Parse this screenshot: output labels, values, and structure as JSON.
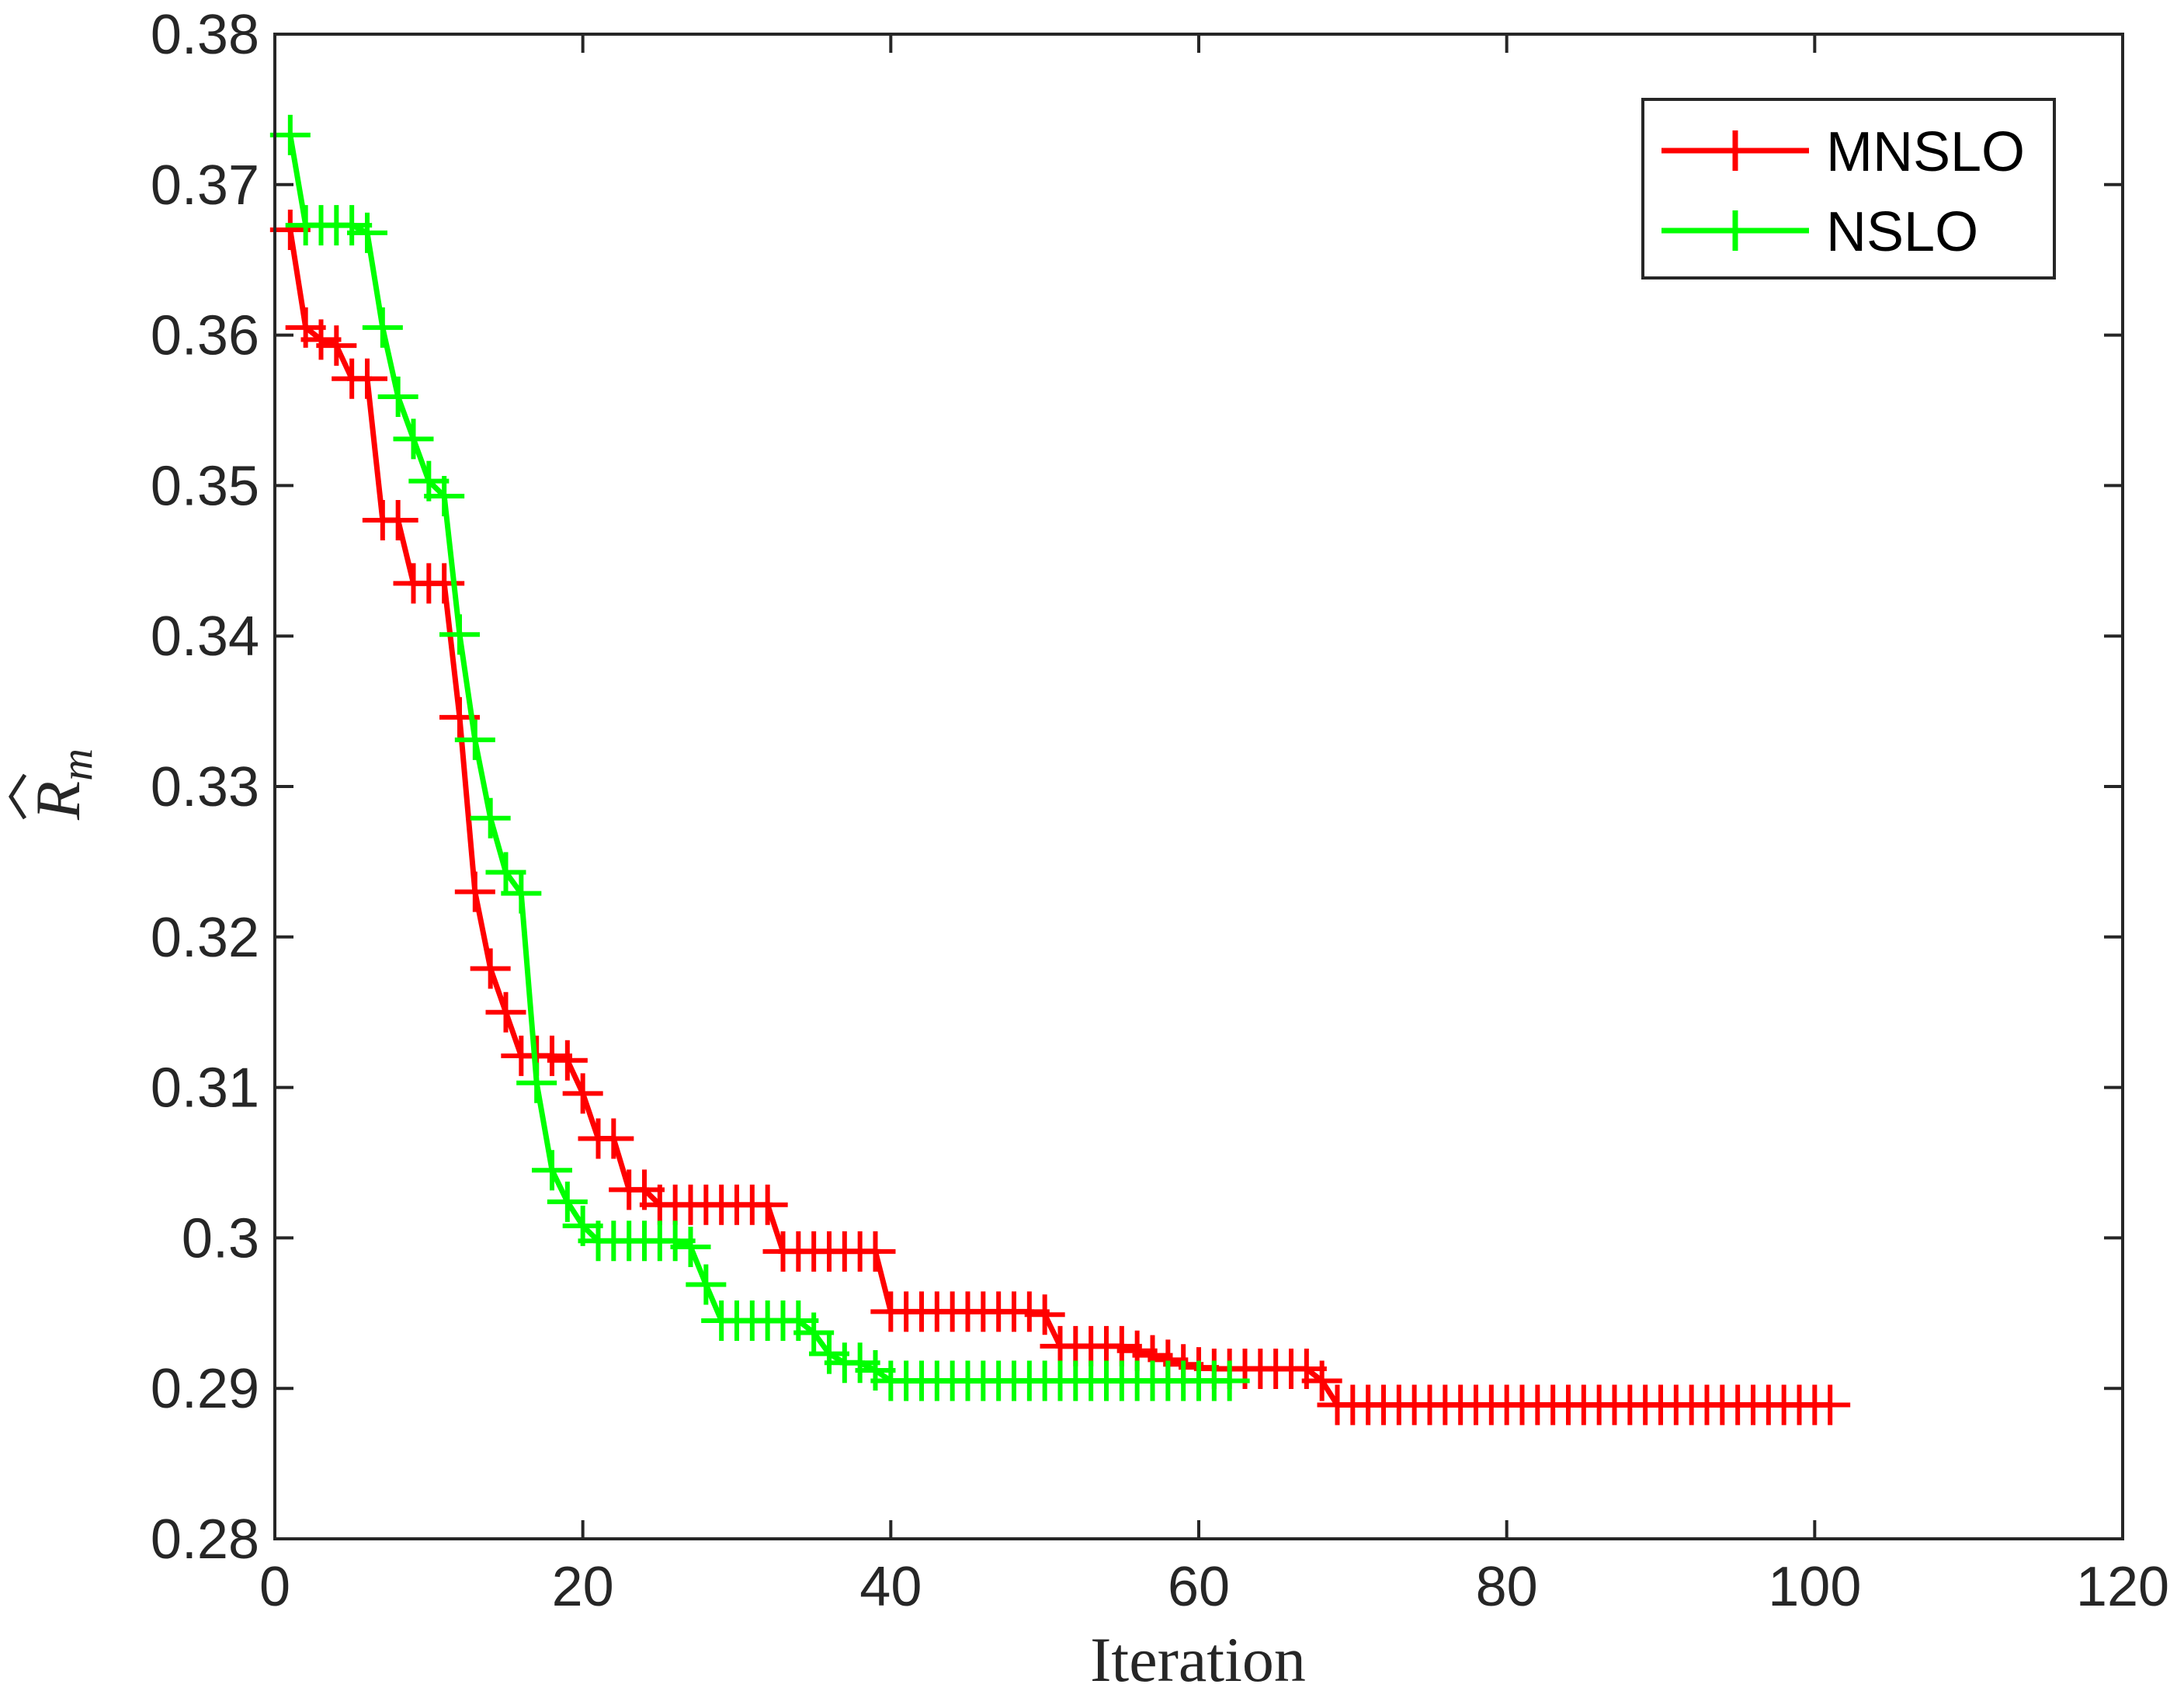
{
  "chart_data": {
    "type": "line",
    "title": "",
    "xlabel": "Iteration",
    "ylabel": "R",
    "ylabel_subscript": "m",
    "xlim": [
      0,
      120
    ],
    "ylim": [
      0.28,
      0.38
    ],
    "xticks": [
      0,
      20,
      40,
      60,
      80,
      100,
      120
    ],
    "xtick_labels": [
      "0",
      "20",
      "40",
      "60",
      "80",
      "100",
      "120"
    ],
    "yticks": [
      0.28,
      0.29,
      0.3,
      0.31,
      0.32,
      0.33,
      0.34,
      0.35,
      0.36,
      0.37,
      0.38
    ],
    "ytick_labels": [
      "0.28",
      "0.29",
      "0.3",
      "0.31",
      "0.32",
      "0.33",
      "0.34",
      "0.35",
      "0.36",
      "0.37",
      "0.38"
    ],
    "grid": false,
    "legend_position": "top-right",
    "marker": "+",
    "series": [
      {
        "name": "MNSLO",
        "color": "#ff0000",
        "x": [
          1,
          2,
          3,
          4,
          5,
          6,
          7,
          8,
          9,
          10,
          11,
          12,
          13,
          14,
          15,
          16,
          17,
          18,
          19,
          20,
          21,
          22,
          23,
          24,
          25,
          26,
          27,
          28,
          29,
          30,
          31,
          32,
          33,
          34,
          35,
          36,
          37,
          38,
          39,
          40,
          41,
          42,
          43,
          44,
          45,
          46,
          47,
          48,
          49,
          50,
          51,
          52,
          53,
          54,
          55,
          56,
          57,
          58,
          59,
          60,
          61,
          62,
          63,
          64,
          65,
          66,
          67,
          68,
          69,
          70,
          71,
          72,
          73,
          74,
          75,
          76,
          77,
          78,
          79,
          80,
          81,
          82,
          83,
          84,
          85,
          86,
          87,
          88,
          89,
          90,
          91,
          92,
          93,
          94,
          95,
          96,
          97,
          98,
          99,
          100,
          101
        ],
        "values": [
          0.367,
          0.3605,
          0.3597,
          0.3593,
          0.3571,
          0.3571,
          0.3477,
          0.3477,
          0.3435,
          0.3435,
          0.3435,
          0.3346,
          0.323,
          0.3179,
          0.315,
          0.3121,
          0.3121,
          0.3121,
          0.3118,
          0.3096,
          0.3066,
          0.3066,
          0.3032,
          0.3032,
          0.3022,
          0.3022,
          0.3022,
          0.3022,
          0.3022,
          0.3022,
          0.3022,
          0.3022,
          0.2991,
          0.2991,
          0.2991,
          0.2991,
          0.2991,
          0.2991,
          0.2991,
          0.2951,
          0.2951,
          0.2951,
          0.2951,
          0.2951,
          0.2951,
          0.2951,
          0.2951,
          0.2951,
          0.2951,
          0.2949,
          0.2928,
          0.2928,
          0.2928,
          0.2928,
          0.2928,
          0.2925,
          0.2922,
          0.2919,
          0.2916,
          0.2914,
          0.2913,
          0.2913,
          0.2913,
          0.2913,
          0.2913,
          0.2913,
          0.2913,
          0.2905,
          0.2889,
          0.2889,
          0.2889,
          0.2889,
          0.2889,
          0.2889,
          0.2889,
          0.2889,
          0.2889,
          0.2889,
          0.2889,
          0.2889,
          0.2889,
          0.2889,
          0.2889,
          0.2889,
          0.2889,
          0.2889,
          0.2889,
          0.2889,
          0.2889,
          0.2889,
          0.2889,
          0.2889,
          0.2889,
          0.2889,
          0.2889,
          0.2889,
          0.2889,
          0.2889,
          0.2889,
          0.2889,
          0.2889
        ]
      },
      {
        "name": "NSLO",
        "color": "#00ff00",
        "x": [
          1,
          2,
          3,
          4,
          5,
          6,
          7,
          8,
          9,
          10,
          11,
          12,
          13,
          14,
          15,
          16,
          17,
          18,
          19,
          20,
          21,
          22,
          23,
          24,
          25,
          26,
          27,
          28,
          29,
          30,
          31,
          32,
          33,
          34,
          35,
          36,
          37,
          38,
          39,
          40,
          41,
          42,
          43,
          44,
          45,
          46,
          47,
          48,
          49,
          50,
          51,
          52,
          53,
          54,
          55,
          56,
          57,
          58,
          59,
          60,
          61,
          62
        ],
        "values": [
          0.3733,
          0.3673,
          0.3673,
          0.3673,
          0.3673,
          0.3668,
          0.3605,
          0.3559,
          0.3531,
          0.3503,
          0.3493,
          0.3401,
          0.3331,
          0.3279,
          0.3243,
          0.3229,
          0.3103,
          0.3045,
          0.3024,
          0.3008,
          0.2998,
          0.2998,
          0.2998,
          0.2998,
          0.2998,
          0.2998,
          0.2994,
          0.2969,
          0.2945,
          0.2945,
          0.2945,
          0.2945,
          0.2945,
          0.2945,
          0.2937,
          0.2923,
          0.2917,
          0.2917,
          0.2912,
          0.2905,
          0.2905,
          0.2905,
          0.2905,
          0.2905,
          0.2905,
          0.2905,
          0.2905,
          0.2905,
          0.2905,
          0.2905,
          0.2905,
          0.2905,
          0.2905,
          0.2905,
          0.2905,
          0.2905,
          0.2905,
          0.2905,
          0.2905,
          0.2905,
          0.2905,
          0.2905
        ]
      }
    ]
  }
}
